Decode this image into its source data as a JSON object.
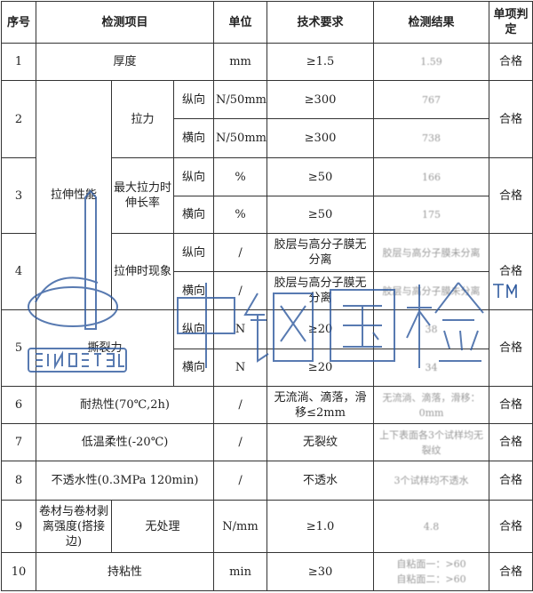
{
  "headers": [
    "序号",
    "检测项目",
    "单位",
    "技术要求",
    "检测结果",
    "单项判定"
  ],
  "rows": {
    "r1": {
      "no": "1",
      "item": "厚度",
      "unit": "mm",
      "req": "≥1.5",
      "result": "1.59",
      "verdict": "合格"
    },
    "r2": {
      "no": "2",
      "group": "拉伸性能",
      "item": "拉力",
      "a": {
        "dir": "纵向",
        "unit": "N/50mm",
        "req": "≥300",
        "result": "767"
      },
      "b": {
        "dir": "横向",
        "unit": "N/50mm",
        "req": "≥300",
        "result": "738"
      },
      "verdict": "合格"
    },
    "r3": {
      "no": "3",
      "item": "最大拉力时伸长率",
      "a": {
        "dir": "纵向",
        "unit": "%",
        "req": "≥50",
        "result": "166"
      },
      "b": {
        "dir": "横向",
        "unit": "%",
        "req": "≥50",
        "result": "175"
      },
      "verdict": "合格"
    },
    "r4": {
      "no": "4",
      "item": "拉伸时现象",
      "a": {
        "dir": "纵向",
        "unit": "/",
        "req": "胶层与高分子膜无分离",
        "result": "胶层与高分子膜未分离"
      },
      "b": {
        "dir": "横向",
        "unit": "/",
        "req": "胶层与高分子膜无分离",
        "result": "胶层与高分子膜未分离"
      },
      "verdict": "合格"
    },
    "r5": {
      "no": "5",
      "item": "撕裂力",
      "a": {
        "dir": "纵向",
        "unit": "N",
        "req": "≥20",
        "result": "38"
      },
      "b": {
        "dir": "横向",
        "unit": "N",
        "req": "≥20",
        "result": "34"
      },
      "verdict": "合格"
    },
    "r6": {
      "no": "6",
      "item": "耐热性(70℃,2h)",
      "unit": "/",
      "req": "无流淌、滴落，滑移≤2mm",
      "result": "无流淌、滴落，滑移：0mm",
      "verdict": "合格"
    },
    "r7": {
      "no": "7",
      "item": "低温柔性(-20℃)",
      "unit": "/",
      "req": "无裂纹",
      "result": "上下表面各3个试样均无裂纹",
      "verdict": "合格"
    },
    "r8": {
      "no": "8",
      "item": "不透水性(0.3MPa 120min)",
      "unit": "/",
      "req": "不透水",
      "result": "3个试样均不透水",
      "verdict": "合格"
    },
    "r9": {
      "no": "9",
      "item": "卷材与卷材剥离强度(搭接边)",
      "sub": "无处理",
      "unit": "N/mm",
      "req": "≥1.0",
      "result": "4.8",
      "verdict": "合格"
    },
    "r10": {
      "no": "10",
      "item": "持粘性",
      "unit": "min",
      "req": "≥30",
      "result1": "自粘面一：>60",
      "result2": "自粘面二：>60",
      "verdict": "合格"
    }
  },
  "watermark": {
    "logo_text": "SINOSTEEL",
    "cn_text": "中钢国检",
    "tm": "TM",
    "color": "#2f5a9e"
  }
}
